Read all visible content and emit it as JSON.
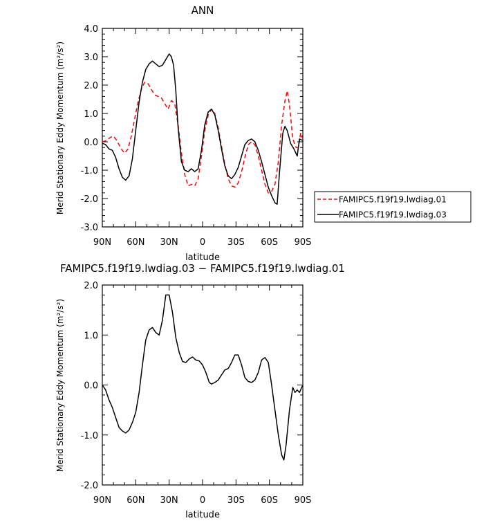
{
  "chart_data": [
    {
      "type": "line",
      "title": "ANN",
      "xlabel": "latitude",
      "ylabel": "Merid Stationary Eddy Momentum (m²/s²)",
      "xlim": [
        90,
        -90
      ],
      "ylim": [
        -3.0,
        4.0
      ],
      "xticks": [
        90,
        60,
        30,
        0,
        -30,
        -60,
        -90
      ],
      "xtick_labels": [
        "90N",
        "60N",
        "30N",
        "0",
        "30S",
        "60S",
        "90S"
      ],
      "yticks": [
        -3.0,
        -2.0,
        -1.0,
        0.0,
        1.0,
        2.0,
        3.0,
        4.0
      ],
      "ytick_labels": [
        "-3.0",
        "-2.0",
        "-1.0",
        "0.0",
        "1.0",
        "2.0",
        "3.0",
        "4.0"
      ],
      "legend_position": "right",
      "series": [
        {
          "name": "FAMIPC5.f19f19.lwdiag.01",
          "color": "#ff0000",
          "dash": "dashed",
          "points": [
            [
              90,
              0.0
            ],
            [
              86,
              0.05
            ],
            [
              83,
              0.15
            ],
            [
              80,
              0.2
            ],
            [
              77,
              0.05
            ],
            [
              73,
              -0.25
            ],
            [
              70,
              -0.4
            ],
            [
              67,
              -0.25
            ],
            [
              64,
              0.2
            ],
            [
              61,
              0.8
            ],
            [
              58,
              1.4
            ],
            [
              55,
              1.85
            ],
            [
              52,
              2.1
            ],
            [
              49,
              2.05
            ],
            [
              46,
              1.85
            ],
            [
              43,
              1.65
            ],
            [
              40,
              1.6
            ],
            [
              37,
              1.55
            ],
            [
              34,
              1.35
            ],
            [
              31,
              1.15
            ],
            [
              28,
              1.45
            ],
            [
              25,
              1.35
            ],
            [
              22,
              0.6
            ],
            [
              19,
              -0.4
            ],
            [
              16,
              -1.15
            ],
            [
              13,
              -1.55
            ],
            [
              10,
              -1.5
            ],
            [
              7,
              -1.55
            ],
            [
              4,
              -1.3
            ],
            [
              1,
              -0.5
            ],
            [
              -2,
              0.4
            ],
            [
              -5,
              0.95
            ],
            [
              -8,
              1.15
            ],
            [
              -11,
              1.0
            ],
            [
              -14,
              0.5
            ],
            [
              -17,
              -0.15
            ],
            [
              -20,
              -0.8
            ],
            [
              -23,
              -1.3
            ],
            [
              -26,
              -1.55
            ],
            [
              -29,
              -1.6
            ],
            [
              -32,
              -1.45
            ],
            [
              -35,
              -1.05
            ],
            [
              -38,
              -0.55
            ],
            [
              -41,
              -0.1
            ],
            [
              -44,
              0.0
            ],
            [
              -47,
              -0.1
            ],
            [
              -50,
              -0.5
            ],
            [
              -53,
              -1.0
            ],
            [
              -56,
              -1.5
            ],
            [
              -59,
              -1.8
            ],
            [
              -62,
              -1.75
            ],
            [
              -65,
              -1.5
            ],
            [
              -68,
              -0.7
            ],
            [
              -71,
              0.6
            ],
            [
              -74,
              1.45
            ],
            [
              -76,
              1.8
            ],
            [
              -78,
              1.3
            ],
            [
              -81,
              0.1
            ],
            [
              -84,
              -0.2
            ],
            [
              -86,
              -0.2
            ],
            [
              -88,
              0.3
            ],
            [
              -90,
              0.1
            ]
          ]
        },
        {
          "name": "FAMIPC5.f19f19.lwdiag.03",
          "color": "#000000",
          "dash": "solid",
          "points": [
            [
              90,
              -0.05
            ],
            [
              87,
              -0.1
            ],
            [
              84,
              -0.25
            ],
            [
              81,
              -0.3
            ],
            [
              78,
              -0.55
            ],
            [
              75,
              -0.95
            ],
            [
              72,
              -1.25
            ],
            [
              69,
              -1.35
            ],
            [
              66,
              -1.2
            ],
            [
              63,
              -0.6
            ],
            [
              60,
              0.4
            ],
            [
              57,
              1.4
            ],
            [
              54,
              2.1
            ],
            [
              51,
              2.55
            ],
            [
              48,
              2.75
            ],
            [
              45,
              2.85
            ],
            [
              42,
              2.75
            ],
            [
              39,
              2.65
            ],
            [
              36,
              2.7
            ],
            [
              33,
              2.9
            ],
            [
              30,
              3.1
            ],
            [
              28,
              3.0
            ],
            [
              26,
              2.7
            ],
            [
              24,
              1.8
            ],
            [
              22,
              0.5
            ],
            [
              19,
              -0.7
            ],
            [
              16,
              -1.0
            ],
            [
              13,
              -1.05
            ],
            [
              10,
              -0.95
            ],
            [
              7,
              -1.05
            ],
            [
              4,
              -0.95
            ],
            [
              1,
              -0.3
            ],
            [
              -2,
              0.6
            ],
            [
              -5,
              1.05
            ],
            [
              -8,
              1.15
            ],
            [
              -11,
              0.95
            ],
            [
              -14,
              0.4
            ],
            [
              -17,
              -0.25
            ],
            [
              -20,
              -0.85
            ],
            [
              -23,
              -1.2
            ],
            [
              -26,
              -1.3
            ],
            [
              -29,
              -1.15
            ],
            [
              -32,
              -0.9
            ],
            [
              -35,
              -0.5
            ],
            [
              -38,
              -0.1
            ],
            [
              -41,
              0.05
            ],
            [
              -44,
              0.1
            ],
            [
              -47,
              0.0
            ],
            [
              -50,
              -0.3
            ],
            [
              -53,
              -0.7
            ],
            [
              -56,
              -1.15
            ],
            [
              -59,
              -1.6
            ],
            [
              -62,
              -1.9
            ],
            [
              -65,
              -2.15
            ],
            [
              -67,
              -2.2
            ],
            [
              -69,
              -1.1
            ],
            [
              -72,
              0.3
            ],
            [
              -74,
              0.55
            ],
            [
              -76,
              0.4
            ],
            [
              -79,
              -0.05
            ],
            [
              -82,
              -0.25
            ],
            [
              -85,
              -0.5
            ],
            [
              -87,
              0.1
            ],
            [
              -90,
              0.05
            ]
          ]
        }
      ]
    },
    {
      "type": "line",
      "title": "FAMIPC5.f19f19.lwdiag.03 − FAMIPC5.f19f19.lwdiag.01",
      "xlabel": "latitude",
      "ylabel": "Merid Stationary Eddy Momentum (m²/s²)",
      "xlim": [
        90,
        -90
      ],
      "ylim": [
        -2.0,
        2.0
      ],
      "xticks": [
        90,
        60,
        30,
        0,
        -30,
        -60,
        -90
      ],
      "xtick_labels": [
        "90N",
        "60N",
        "30N",
        "0",
        "30S",
        "60S",
        "90S"
      ],
      "yticks": [
        -2.0,
        -1.0,
        0.0,
        1.0,
        2.0
      ],
      "ytick_labels": [
        "-2.0",
        "-1.0",
        "0.0",
        "1.0",
        "2.0"
      ],
      "series": [
        {
          "color": "#000000",
          "dash": "solid",
          "points": [
            [
              90,
              0.0
            ],
            [
              87,
              -0.1
            ],
            [
              84,
              -0.3
            ],
            [
              81,
              -0.45
            ],
            [
              78,
              -0.65
            ],
            [
              75,
              -0.85
            ],
            [
              72,
              -0.92
            ],
            [
              69,
              -0.96
            ],
            [
              66,
              -0.9
            ],
            [
              63,
              -0.75
            ],
            [
              60,
              -0.55
            ],
            [
              57,
              -0.15
            ],
            [
              54,
              0.4
            ],
            [
              51,
              0.9
            ],
            [
              48,
              1.1
            ],
            [
              45,
              1.15
            ],
            [
              42,
              1.05
            ],
            [
              39,
              1.0
            ],
            [
              36,
              1.3
            ],
            [
              33,
              1.8
            ],
            [
              30,
              1.8
            ],
            [
              27,
              1.45
            ],
            [
              24,
              0.95
            ],
            [
              21,
              0.65
            ],
            [
              18,
              0.47
            ],
            [
              15,
              0.45
            ],
            [
              12,
              0.52
            ],
            [
              9,
              0.56
            ],
            [
              6,
              0.5
            ],
            [
              3,
              0.48
            ],
            [
              0,
              0.4
            ],
            [
              -3,
              0.25
            ],
            [
              -6,
              0.05
            ],
            [
              -8,
              0.02
            ],
            [
              -11,
              0.05
            ],
            [
              -14,
              0.1
            ],
            [
              -17,
              0.2
            ],
            [
              -20,
              0.3
            ],
            [
              -23,
              0.33
            ],
            [
              -26,
              0.45
            ],
            [
              -29,
              0.6
            ],
            [
              -32,
              0.6
            ],
            [
              -35,
              0.4
            ],
            [
              -38,
              0.15
            ],
            [
              -41,
              0.07
            ],
            [
              -44,
              0.05
            ],
            [
              -47,
              0.1
            ],
            [
              -50,
              0.25
            ],
            [
              -53,
              0.5
            ],
            [
              -56,
              0.55
            ],
            [
              -59,
              0.45
            ],
            [
              -62,
              0.0
            ],
            [
              -65,
              -0.5
            ],
            [
              -68,
              -1.0
            ],
            [
              -71,
              -1.4
            ],
            [
              -73,
              -1.5
            ],
            [
              -75,
              -1.2
            ],
            [
              -78,
              -0.5
            ],
            [
              -81,
              -0.05
            ],
            [
              -83,
              -0.15
            ],
            [
              -85,
              -0.1
            ],
            [
              -87,
              -0.15
            ],
            [
              -90,
              0.0
            ]
          ]
        }
      ]
    }
  ]
}
